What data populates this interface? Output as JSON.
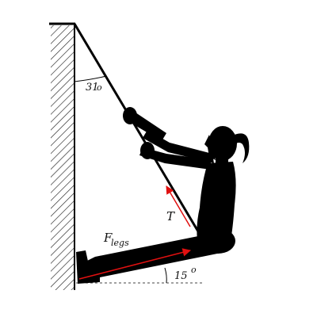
{
  "figure": {
    "rope_angle_label": "31",
    "rope_angle_degree_mark": "o",
    "leg_angle_label": "15",
    "leg_angle_degree_mark": "o",
    "tension_label": "T",
    "leg_force_label_main": "F",
    "leg_force_label_sub": "legs"
  },
  "colors": {
    "force_arrows": "#e01010",
    "silhouette": "#000000",
    "wall_hatch": "#222222"
  }
}
